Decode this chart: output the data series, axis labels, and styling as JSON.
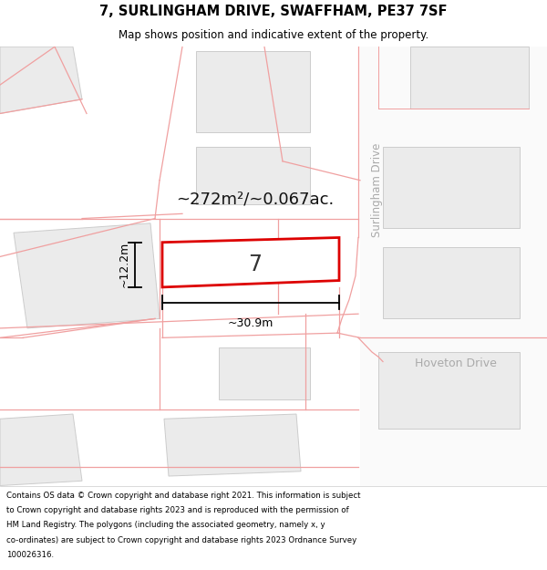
{
  "title": "7, SURLINGHAM DRIVE, SWAFFHAM, PE37 7SF",
  "subtitle": "Map shows position and indicative extent of the property.",
  "footer_lines": [
    "Contains OS data © Crown copyright and database right 2021. This information is subject",
    "to Crown copyright and database rights 2023 and is reproduced with the permission of",
    "HM Land Registry. The polygons (including the associated geometry, namely x, y",
    "co-ordinates) are subject to Crown copyright and database rights 2023 Ordnance Survey",
    "100026316."
  ],
  "map_bg": "#f7f5f3",
  "white_bg": "#ffffff",
  "plot_bg": "#ebebeb",
  "highlight_edge": "#dd0000",
  "highlight_fill": "#ffffff",
  "boundary_color": "#f0a0a0",
  "dim_color": "#000000",
  "label_color": "#aaaaaa",
  "area_text": "~272m²/~0.067ac.",
  "plot_number": "7",
  "dim_width": "~30.9m",
  "dim_height": "~12.2m",
  "street_label_v": "Surlingham Drive",
  "street_label_h": "Hoveton Drive",
  "figsize": [
    6.0,
    6.25
  ],
  "dpi": 100
}
